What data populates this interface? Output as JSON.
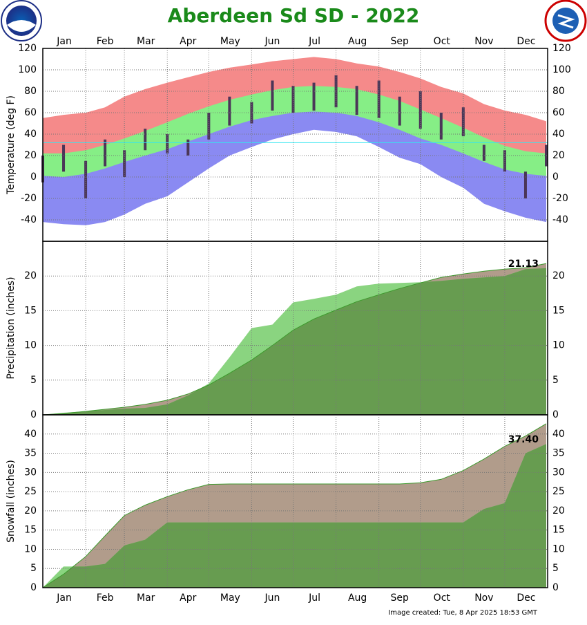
{
  "title": "Aberdeen Sd SD - 2022",
  "footer": "Image created: Tue, 8 Apr 2025 18:53 GMT",
  "x_axis": {
    "xlim": [
      1,
      366
    ],
    "xticks": [
      1,
      32,
      60,
      91,
      121,
      152,
      182,
      213,
      244,
      274,
      305,
      335,
      366
    ],
    "categories": [
      "Jan",
      "Feb",
      "Mar",
      "Apr",
      "May",
      "Jun",
      "Jul",
      "Aug",
      "Sep",
      "Oct",
      "Nov",
      "Dec"
    ],
    "x": [
      1,
      16,
      32,
      46,
      60,
      75,
      91,
      106,
      121,
      136,
      152,
      167,
      182,
      197,
      213,
      228,
      244,
      259,
      274,
      289,
      305,
      320,
      335,
      350,
      365
    ]
  },
  "chart_data": [
    {
      "type": "band",
      "ylabel": "Temperature (deg F)",
      "ylim": [
        -60,
        120
      ],
      "yticks": [
        -40,
        -20,
        0,
        20,
        40,
        60,
        80,
        100,
        120
      ],
      "grid": true,
      "series": [
        {
          "color": "#f58a8a",
          "values": [
            55,
            58,
            60,
            65,
            75,
            82,
            88,
            93,
            98,
            102,
            105,
            108,
            110,
            112,
            110,
            106,
            103,
            98,
            92,
            84,
            78,
            68,
            62,
            58,
            52
          ]
        },
        {
          "color": "#86ee86",
          "values": [
            22,
            22,
            25,
            30,
            36,
            43,
            51,
            59,
            66,
            72,
            77,
            81,
            84,
            85,
            84,
            82,
            77,
            71,
            63,
            55,
            46,
            37,
            29,
            24,
            22
          ]
        },
        {
          "color": "#8a8af2",
          "values": [
            1,
            0,
            3,
            8,
            14,
            20,
            26,
            33,
            40,
            47,
            53,
            57,
            60,
            61,
            60,
            57,
            51,
            44,
            36,
            30,
            22,
            14,
            7,
            3,
            1
          ]
        },
        {
          "color": "#ffffff",
          "values": [
            -42,
            -44,
            -45,
            -42,
            -35,
            -25,
            -18,
            -5,
            8,
            20,
            28,
            35,
            40,
            44,
            42,
            38,
            28,
            18,
            12,
            0,
            -10,
            -25,
            -32,
            -38,
            -42
          ]
        }
      ],
      "observed": {
        "color": "#4b3658",
        "high": [
          20,
          30,
          15,
          35,
          25,
          45,
          40,
          35,
          60,
          75,
          70,
          90,
          85,
          88,
          95,
          85,
          90,
          75,
          80,
          60,
          65,
          30,
          25,
          5,
          30
        ],
        "low": [
          -5,
          5,
          -20,
          10,
          0,
          25,
          22,
          20,
          35,
          48,
          50,
          62,
          60,
          62,
          65,
          58,
          55,
          48,
          45,
          35,
          38,
          15,
          5,
          -20,
          10
        ]
      },
      "reference_line": {
        "value": 32,
        "color": "#33e6f0"
      }
    },
    {
      "type": "area",
      "ylabel": "Precipitation (inches)",
      "ylim": [
        0,
        25
      ],
      "yticks": [
        0,
        5,
        10,
        15,
        20
      ],
      "grid": true,
      "series": [
        {
          "color": "#b19c8b",
          "line_color": "#3c9a2c",
          "values": [
            0,
            0.2,
            0.5,
            0.8,
            1.1,
            1.5,
            2.1,
            3.0,
            4.3,
            6.0,
            7.9,
            10.0,
            12.2,
            13.8,
            15.1,
            16.3,
            17.3,
            18.2,
            19.0,
            19.8,
            20.3,
            20.7,
            21.0,
            21.2,
            21.8
          ]
        },
        {
          "color": "#8ad480",
          "overlap_color": "#679c50",
          "values": [
            0,
            0.3,
            0.5,
            0.7,
            0.9,
            1.0,
            1.5,
            2.8,
            4.5,
            8.3,
            12.5,
            13.0,
            16.2,
            16.7,
            17.3,
            18.5,
            18.9,
            19.0,
            19.1,
            19.3,
            19.6,
            19.8,
            20.0,
            21.0,
            21.13
          ]
        }
      ],
      "annotation": "21.13"
    },
    {
      "type": "area",
      "ylabel": "Snowfall (inches)",
      "ylim": [
        0,
        45
      ],
      "yticks": [
        0,
        5,
        10,
        15,
        20,
        25,
        30,
        35,
        40
      ],
      "grid": true,
      "series": [
        {
          "color": "#b19c8b",
          "line_color": "#3c9a2c",
          "values": [
            0,
            3.5,
            8.1,
            13.5,
            18.8,
            21.5,
            23.7,
            25.5,
            26.9,
            27,
            27,
            27,
            27,
            27,
            27,
            27,
            27,
            27,
            27.3,
            28.2,
            30.5,
            33.5,
            36.8,
            39.5,
            42.7
          ]
        },
        {
          "color": "#8ad480",
          "overlap_color": "#679c50",
          "values": [
            0,
            5.5,
            5.5,
            6.2,
            11.0,
            12.5,
            17.0,
            17.0,
            17.0,
            17.0,
            17.0,
            17.0,
            17.0,
            17.0,
            17.0,
            17.0,
            17.0,
            17.0,
            17.0,
            17.0,
            17.0,
            20.5,
            22.0,
            35.0,
            37.4
          ]
        }
      ],
      "annotation": "37.40"
    }
  ]
}
